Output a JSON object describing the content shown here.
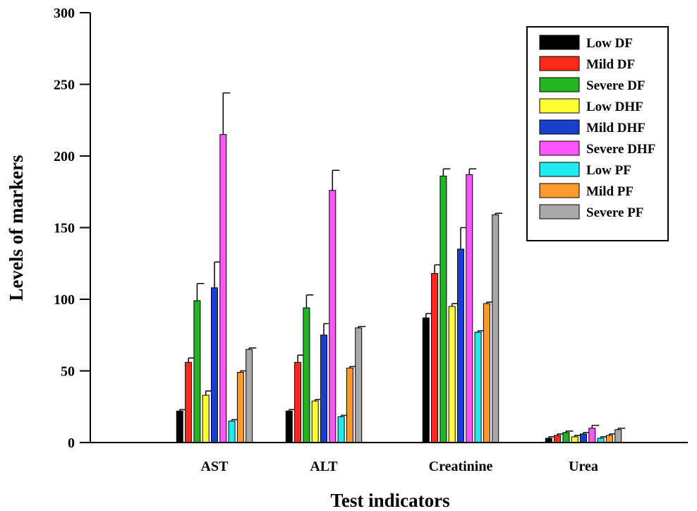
{
  "chart_data": {
    "type": "bar",
    "title": "",
    "xlabel": "Test indicators",
    "ylabel": "Levels of markers",
    "ylim": [
      0,
      300
    ],
    "yticks": [
      0,
      50,
      100,
      150,
      200,
      250,
      300
    ],
    "categories": [
      "AST",
      "ALT",
      "Creatinine",
      "Urea"
    ],
    "legend_position": "top-right",
    "grid": false,
    "series": [
      {
        "name": "Low DF",
        "color": "#000000",
        "values": [
          22,
          22,
          87,
          3
        ],
        "errors": [
          1,
          1,
          3,
          1
        ]
      },
      {
        "name": "Mild DF",
        "color": "#ff2a1a",
        "values": [
          56,
          56,
          118,
          5
        ],
        "errors": [
          3,
          5,
          6,
          1
        ]
      },
      {
        "name": "Severe DF",
        "color": "#22b422",
        "values": [
          99,
          94,
          186,
          7
        ],
        "errors": [
          12,
          9,
          5,
          1
        ]
      },
      {
        "name": "Low DHF",
        "color": "#ffff33",
        "values": [
          33,
          29,
          95,
          4
        ],
        "errors": [
          3,
          1,
          2,
          1
        ]
      },
      {
        "name": "Mild DHF",
        "color": "#1a3fcc",
        "values": [
          108,
          75,
          135,
          6
        ],
        "errors": [
          18,
          8,
          15,
          1
        ]
      },
      {
        "name": "Severe DHF",
        "color": "#ff55ff",
        "values": [
          215,
          176,
          187,
          10
        ],
        "errors": [
          29,
          14,
          4,
          2
        ]
      },
      {
        "name": "Low PF",
        "color": "#22e8f0",
        "values": [
          15,
          18,
          77,
          3
        ],
        "errors": [
          1,
          1,
          1,
          1
        ]
      },
      {
        "name": "Mild PF",
        "color": "#ff9a2e",
        "values": [
          49,
          52,
          97,
          5
        ],
        "errors": [
          1,
          1,
          1,
          1
        ]
      },
      {
        "name": "Severe PF",
        "color": "#a8a8a8",
        "values": [
          65,
          80,
          159,
          9
        ],
        "errors": [
          1,
          1,
          1,
          1
        ]
      }
    ]
  }
}
